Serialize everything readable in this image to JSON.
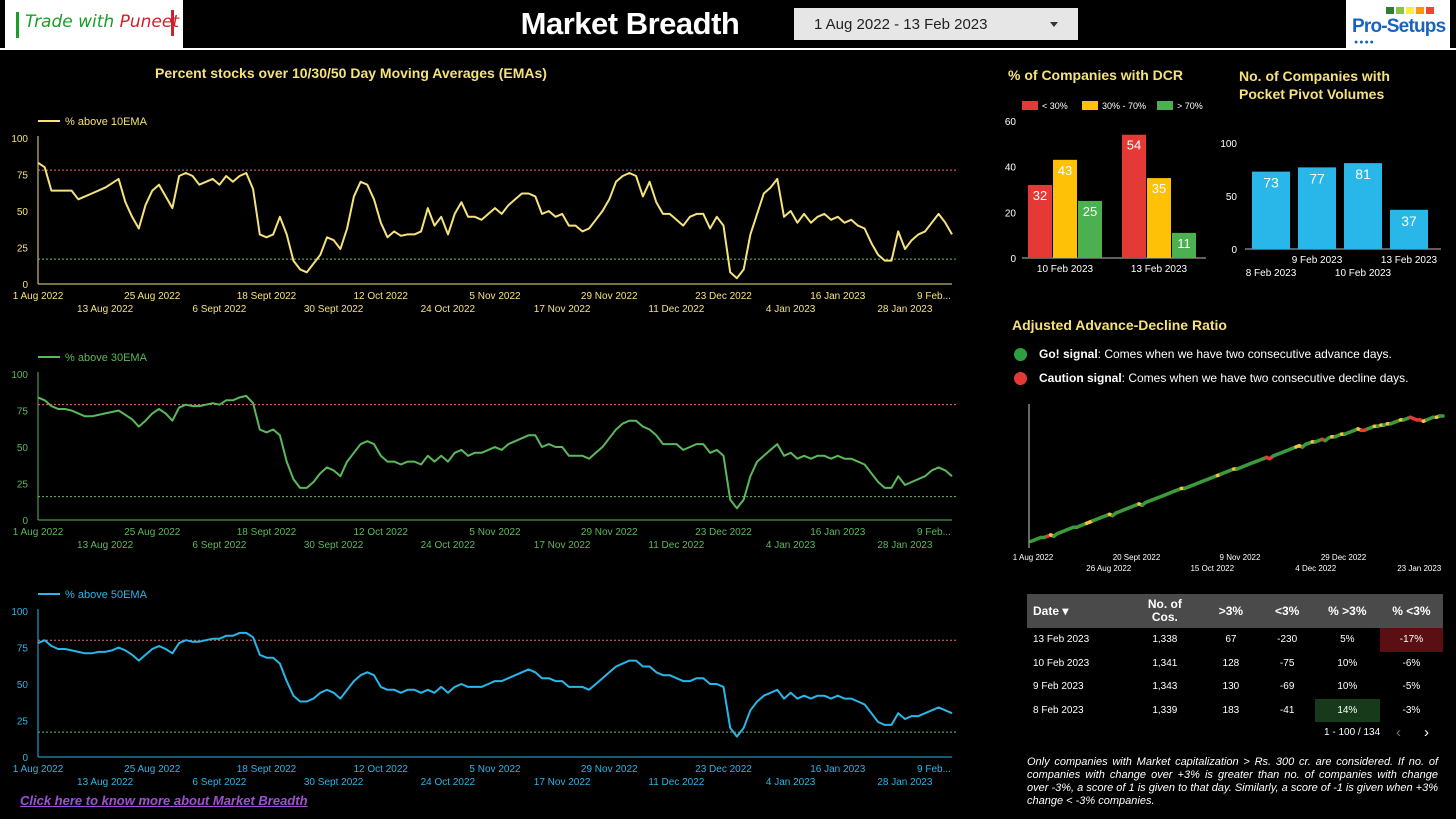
{
  "header": {
    "logo_left": {
      "part1": "Trade with ",
      "part2": "Puneet"
    },
    "title": "Market Breadth",
    "date_range": "1 Aug 2022 - 13 Feb 2023",
    "logo_right": "Pro-Setups"
  },
  "colors": {
    "yellow": "#f5e27a",
    "green": "#5bb85b",
    "blue": "#29b6e8",
    "red": "#e53935",
    "amber": "#ffc107",
    "bar_green": "#4caf50"
  },
  "ema": {
    "title": "Percent stocks over 10/30/50 Day Moving Averages (EMAs)",
    "x_ticks_top": [
      "1 Aug 2022",
      "25 Aug 2022",
      "18 Sept 2022",
      "12 Oct 2022",
      "5 Nov 2022",
      "29 Nov 2022",
      "23 Dec 2022",
      "16 Jan 2023",
      "9 Feb..."
    ],
    "x_ticks_bottom": [
      "13 Aug 2022",
      "6 Sept 2022",
      "30 Sept 2022",
      "24 Oct 2022",
      "17 Nov 2022",
      "11 Dec 2022",
      "4 Jan 2023",
      "28 Jan 2023"
    ]
  },
  "chart_data": [
    {
      "type": "line",
      "legend": "% above 10EMA",
      "y_ticks": [
        "100",
        "75",
        "50",
        "25",
        "0"
      ],
      "ylim": [
        0,
        100
      ],
      "reference_lines": [
        78,
        17
      ],
      "x_start": "2022-08-01",
      "x_end": "2023-02-13",
      "values": [
        83,
        80,
        64,
        64,
        64,
        64,
        58,
        60,
        62,
        64,
        66,
        69,
        72,
        56,
        46,
        38,
        54,
        64,
        68,
        60,
        52,
        74,
        76,
        74,
        68,
        70,
        72,
        68,
        74,
        70,
        74,
        76,
        65,
        34,
        32,
        34,
        46,
        34,
        16,
        10,
        8,
        14,
        20,
        32,
        30,
        24,
        38,
        60,
        70,
        68,
        58,
        42,
        32,
        36,
        33,
        34,
        34,
        36,
        52,
        40,
        46,
        34,
        48,
        56,
        46,
        46,
        44,
        48,
        52,
        48,
        54,
        58,
        62,
        62,
        60,
        48,
        50,
        46,
        48,
        40,
        40,
        36,
        38,
        44,
        50,
        58,
        70,
        74,
        76,
        74,
        60,
        70,
        56,
        48,
        48,
        44,
        40,
        46,
        48,
        48,
        38,
        46,
        40,
        8,
        4,
        10,
        34,
        48,
        62,
        66,
        72,
        46,
        50,
        42,
        48,
        42,
        46,
        48,
        44,
        46,
        42,
        44,
        40,
        38,
        28,
        20,
        16,
        16,
        36,
        24,
        30,
        34,
        36,
        42,
        48,
        42,
        34
      ]
    },
    {
      "type": "line",
      "legend": "% above 30EMA",
      "y_ticks": [
        "100",
        "75",
        "50",
        "25",
        "0"
      ],
      "ylim": [
        0,
        100
      ],
      "reference_lines": [
        79,
        16
      ],
      "x_start": "2022-08-01",
      "x_end": "2023-02-13",
      "values": [
        84,
        82,
        78,
        76,
        76,
        75,
        73,
        71,
        71,
        72,
        73,
        74,
        75,
        72,
        69,
        64,
        68,
        73,
        76,
        73,
        68,
        77,
        79,
        78,
        78,
        79,
        80,
        79,
        82,
        82,
        84,
        85,
        80,
        62,
        60,
        62,
        58,
        40,
        28,
        22,
        22,
        26,
        32,
        36,
        34,
        30,
        40,
        46,
        52,
        54,
        52,
        44,
        40,
        40,
        38,
        40,
        40,
        38,
        44,
        40,
        44,
        40,
        46,
        48,
        44,
        46,
        46,
        48,
        50,
        48,
        52,
        54,
        56,
        58,
        58,
        50,
        52,
        50,
        50,
        44,
        44,
        44,
        42,
        46,
        50,
        56,
        62,
        66,
        68,
        68,
        64,
        62,
        58,
        52,
        52,
        52,
        48,
        50,
        52,
        52,
        46,
        48,
        44,
        14,
        8,
        14,
        30,
        40,
        44,
        48,
        52,
        44,
        46,
        42,
        44,
        42,
        44,
        44,
        42,
        44,
        42,
        42,
        40,
        38,
        32,
        26,
        22,
        22,
        30,
        24,
        26,
        28,
        30,
        34,
        36,
        34,
        30
      ]
    },
    {
      "type": "line",
      "legend": "% above 50EMA",
      "y_ticks": [
        "100",
        "75",
        "50",
        "25",
        "0"
      ],
      "ylim": [
        0,
        100
      ],
      "reference_lines": [
        80,
        17
      ],
      "x_start": "2022-08-01",
      "x_end": "2023-02-13",
      "values": [
        78,
        80,
        76,
        74,
        74,
        73,
        72,
        71,
        71,
        72,
        72,
        73,
        75,
        73,
        70,
        66,
        70,
        74,
        76,
        74,
        71,
        78,
        80,
        79,
        79,
        80,
        81,
        81,
        83,
        83,
        85,
        85,
        82,
        70,
        68,
        68,
        64,
        52,
        42,
        38,
        38,
        40,
        44,
        46,
        44,
        40,
        46,
        52,
        56,
        58,
        56,
        48,
        46,
        46,
        44,
        46,
        46,
        44,
        46,
        44,
        48,
        44,
        48,
        50,
        48,
        48,
        48,
        50,
        52,
        52,
        54,
        56,
        58,
        60,
        58,
        54,
        54,
        52,
        52,
        48,
        48,
        48,
        46,
        50,
        54,
        58,
        62,
        64,
        66,
        66,
        62,
        62,
        58,
        56,
        56,
        54,
        52,
        52,
        54,
        54,
        50,
        50,
        48,
        20,
        14,
        20,
        32,
        38,
        42,
        44,
        46,
        40,
        44,
        40,
        42,
        40,
        42,
        42,
        40,
        42,
        40,
        40,
        38,
        36,
        30,
        24,
        22,
        22,
        30,
        26,
        28,
        28,
        30,
        32,
        34,
        32,
        30
      ]
    },
    {
      "type": "bar",
      "title": "% of Companies with DCR",
      "categories": [
        "10 Feb 2023",
        "13 Feb 2023"
      ],
      "series": [
        {
          "name": "< 30%",
          "values": [
            32,
            54
          ]
        },
        {
          "name": "30% - 70%",
          "values": [
            43,
            35
          ]
        },
        {
          "name": "> 70%",
          "values": [
            25,
            11
          ]
        }
      ],
      "y_ticks": [
        "60",
        "40",
        "20",
        "0"
      ],
      "ylim": [
        0,
        60
      ]
    },
    {
      "type": "bar",
      "title_line1": "No. of Companies with",
      "title_line2": "Pocket Pivot Volumes",
      "categories": [
        "8 Feb 2023",
        "9 Feb 2023",
        "10 Feb 2023",
        "13 Feb 2023"
      ],
      "values": [
        73,
        77,
        81,
        37
      ],
      "y_ticks": [
        "100",
        "50",
        "0"
      ],
      "ylim": [
        0,
        100
      ]
    },
    {
      "type": "line",
      "title": "Adjusted Advance-Decline Ratio",
      "x_ticks_top": [
        "1 Aug 2022",
        "20 Sept 2022",
        "9 Nov 2022",
        "29 Dec 2022"
      ],
      "x_ticks_bottom": [
        "26 Aug 2022",
        "15 Oct 2022",
        "4 Dec 2022",
        "23 Jan 2023"
      ],
      "legend": [
        {
          "label": "Go! signal",
          "text": ": Comes when we have two consecutive advance days."
        },
        {
          "label": "Caution signal",
          "text": ": Comes when we have two consecutive decline days."
        }
      ],
      "values": [
        2,
        3,
        4,
        5,
        5,
        6,
        7,
        6,
        8,
        9,
        10,
        11,
        12,
        13,
        13,
        14,
        15,
        16,
        17,
        18,
        19,
        20,
        21,
        22,
        23,
        22,
        24,
        25,
        26,
        27,
        28,
        29,
        30,
        31,
        30,
        32,
        33,
        34,
        35,
        36,
        37,
        38,
        39,
        40,
        41,
        42,
        43,
        43,
        44,
        45,
        46,
        47,
        48,
        49,
        50,
        51,
        52,
        53,
        54,
        55,
        56,
        57,
        58,
        58,
        59,
        60,
        61,
        62,
        63,
        64,
        65,
        66,
        67,
        66,
        68,
        69,
        70,
        71,
        72,
        73,
        74,
        75,
        76,
        75,
        77,
        78,
        79,
        79,
        80,
        81,
        80,
        82,
        83,
        83,
        84,
        85,
        85,
        86,
        87,
        88,
        89,
        88,
        88,
        89,
        90,
        91,
        91,
        92,
        92,
        93,
        93,
        94,
        95,
        96,
        96,
        97,
        98,
        97,
        96,
        96,
        95,
        96,
        97,
        98,
        98,
        99,
        99
      ],
      "signals": [
        0,
        0,
        0,
        0,
        0,
        0,
        2,
        1,
        0,
        0,
        0,
        0,
        0,
        0,
        0,
        0,
        0,
        0,
        1,
        1,
        0,
        0,
        0,
        0,
        0,
        1,
        0,
        0,
        0,
        0,
        0,
        0,
        0,
        0,
        1,
        0,
        0,
        0,
        0,
        0,
        0,
        0,
        0,
        0,
        0,
        0,
        0,
        1,
        0,
        0,
        0,
        0,
        0,
        0,
        0,
        0,
        0,
        0,
        1,
        0,
        0,
        0,
        0,
        1,
        0,
        0,
        0,
        0,
        0,
        0,
        0,
        0,
        0,
        2,
        2,
        0,
        0,
        0,
        0,
        0,
        0,
        0,
        1,
        1,
        0,
        0,
        0,
        1,
        0,
        0,
        2,
        0,
        0,
        1,
        0,
        0,
        1,
        0,
        0,
        0,
        0,
        1,
        2,
        2,
        0,
        0,
        1,
        0,
        1,
        0,
        1,
        0,
        0,
        0,
        1,
        0,
        0,
        2,
        2,
        2,
        2,
        1,
        0,
        0,
        0,
        1,
        0
      ]
    },
    {
      "type": "table",
      "columns": [
        {
          "key": "date",
          "label": "Date ▾"
        },
        {
          "key": "cos",
          "label": "No. of",
          "label2": "Cos."
        },
        {
          "key": "gt",
          "label": ">3%"
        },
        {
          "key": "lt",
          "label": "<3%"
        },
        {
          "key": "pgt",
          "label": "% >3%"
        },
        {
          "key": "plt",
          "label": "% <3%"
        }
      ],
      "rows": [
        {
          "date": "13 Feb 2023",
          "cos": "1,338",
          "gt": "67",
          "lt": "-230",
          "pgt": "5%",
          "plt": "-17%"
        },
        {
          "date": "10 Feb 2023",
          "cos": "1,341",
          "gt": "128",
          "lt": "-75",
          "pgt": "10%",
          "plt": "-6%"
        },
        {
          "date": "9 Feb 2023",
          "cos": "1,343",
          "gt": "130",
          "lt": "-69",
          "pgt": "10%",
          "plt": "-5%"
        },
        {
          "date": "8 Feb 2023",
          "cos": "1,339",
          "gt": "183",
          "lt": "-41",
          "pgt": "14%",
          "plt": "-3%"
        }
      ]
    }
  ],
  "table_pager": {
    "text": "1 - 100 / 134",
    "prev": "‹",
    "next": "›"
  },
  "note": "Only companies with Market capitalization > Rs. 300 cr. are considered. If no. of companies with change over +3% is greater than no. of companies with change over -3%, a score of 1 is given to that day. Similarly, a score of -1 is given when +3% change < -3% companies.",
  "link": "Click here to know more about Market Breadth"
}
